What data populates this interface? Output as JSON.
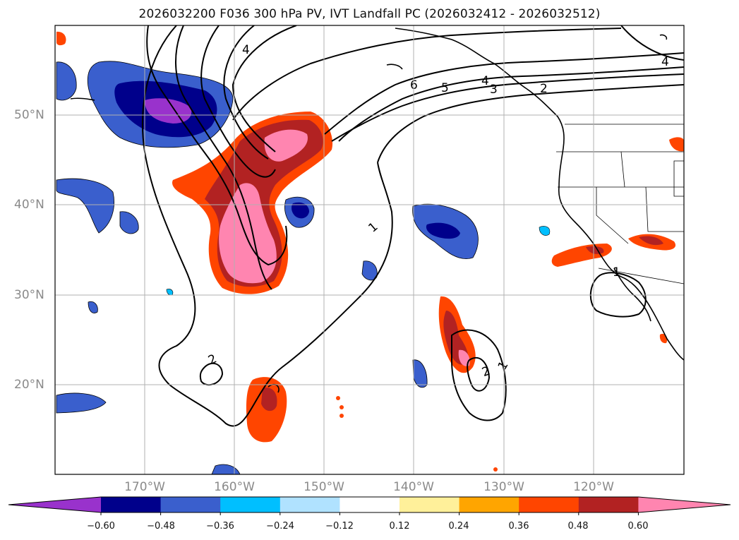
{
  "map": {
    "title": "2026032200 F036 300 hPa PV, IVT Landfall PC (2026032412 - 2026032512)",
    "lat_labels": [
      "50°N",
      "40°N",
      "30°N",
      "20°N"
    ],
    "lon_labels": [
      "170°W",
      "160°W",
      "150°W",
      "140°W",
      "130°W",
      "120°W"
    ],
    "contour_labels": [
      "4",
      "6",
      "5",
      "4",
      "3",
      "2",
      "1",
      "2",
      "2",
      "1",
      "1",
      "4"
    ],
    "colorbar": {
      "tick_labels": [
        "−0.60",
        "−0.48",
        "−0.36",
        "−0.24",
        "−0.12",
        "0.12",
        "0.24",
        "0.36",
        "0.48",
        "0.60"
      ],
      "colors": [
        "#9932cc",
        "#00008b",
        "#3a5fcd",
        "#00bfff",
        "#b0e2ff",
        "#ffffff",
        "#fff09a",
        "#ffa500",
        "#ff4500",
        "#b22222",
        "#ff85b0"
      ]
    }
  }
}
